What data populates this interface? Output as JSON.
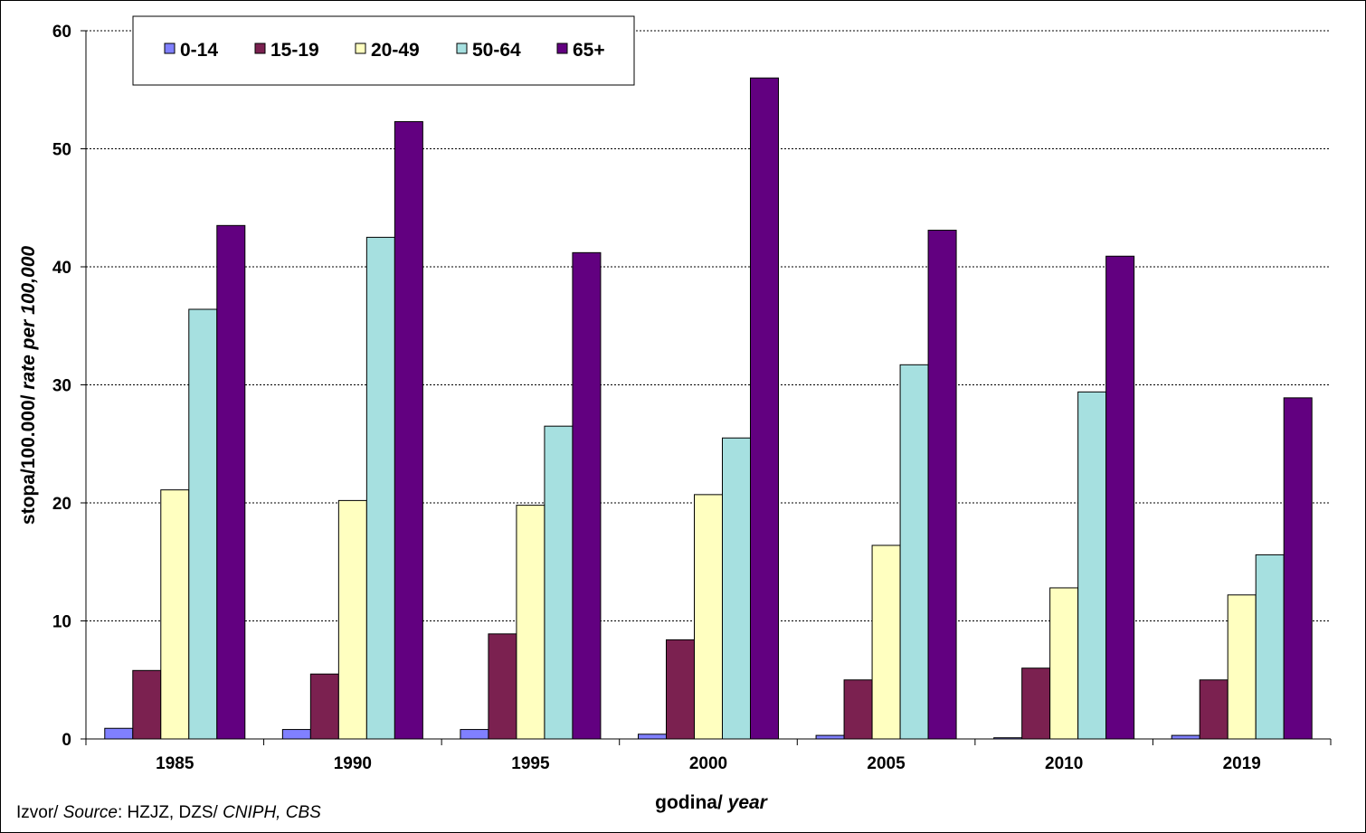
{
  "chart_data": {
    "type": "bar",
    "categories": [
      "1985",
      "1990",
      "1995",
      "2000",
      "2005",
      "2010",
      "2019"
    ],
    "series": [
      {
        "name": "0-14",
        "color": "#8080ff",
        "values": [
          0.9,
          0.8,
          0.8,
          0.4,
          0.3,
          0.1,
          0.3
        ]
      },
      {
        "name": "15-19",
        "color": "#7b2150",
        "values": [
          5.8,
          5.5,
          8.9,
          8.4,
          5.0,
          6.0,
          5.0
        ]
      },
      {
        "name": "20-49",
        "color": "#ffffc0",
        "values": [
          21.1,
          20.2,
          19.8,
          20.7,
          16.4,
          12.8,
          12.2
        ]
      },
      {
        "name": "50-64",
        "color": "#a6e0e0",
        "values": [
          36.4,
          42.5,
          26.5,
          25.5,
          31.7,
          29.4,
          15.6
        ]
      },
      {
        "name": "65+",
        "color": "#620080",
        "values": [
          43.5,
          52.3,
          41.2,
          56.0,
          43.1,
          40.9,
          28.9
        ]
      }
    ],
    "ylim": [
      0,
      60
    ],
    "yticks": [
      "0",
      "10",
      "20",
      "30",
      "40",
      "50",
      "60"
    ],
    "ylabel_main": "stopa/100.000/ ",
    "ylabel_italic": "rate per 100,000",
    "xlabel_main": "godina/ ",
    "xlabel_italic": "year",
    "grid": true,
    "legend": "top-left"
  },
  "source": {
    "label": "Izvor/ ",
    "label_italic": "Source",
    "sep": ": ",
    "text": "HZJZ, DZS/ ",
    "text_italic": "CNIPH, CBS"
  }
}
